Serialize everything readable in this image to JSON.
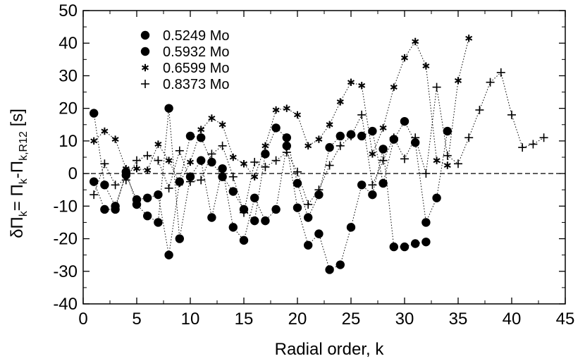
{
  "chart_data": {
    "type": "scatter",
    "title": "",
    "xlabel": "Radial order, k",
    "ylabel": {
      "main": "δΠ",
      "sub1": "k",
      "mid": "= Π",
      "sub2": "k",
      "mid2": "-Π",
      "sub3": "k,R12",
      "tail": " [s]"
    },
    "xlim": [
      0,
      45
    ],
    "ylim": [
      -40,
      50
    ],
    "xticks": [
      "0",
      "5",
      "10",
      "15",
      "20",
      "25",
      "30",
      "35",
      "40",
      "45"
    ],
    "yticks": [
      "-40",
      "-30",
      "-20",
      "-10",
      "0",
      "10",
      "20",
      "30",
      "40",
      "50"
    ],
    "zero_line": true,
    "legend_position": "top-left",
    "series": [
      {
        "name": "0.5249 Mo",
        "marker": "circle",
        "values": [
          [
            1,
            18.5
          ],
          [
            2,
            -3.5
          ],
          [
            3,
            -10
          ],
          [
            4,
            -0.5
          ],
          [
            5,
            -8
          ],
          [
            6,
            -7.5
          ],
          [
            7,
            -6.5
          ],
          [
            8,
            -25
          ],
          [
            9,
            -2.5
          ],
          [
            10,
            11.5
          ],
          [
            11,
            11
          ],
          [
            12,
            3.5
          ],
          [
            13,
            -1
          ],
          [
            14,
            -5.5
          ],
          [
            15,
            -11
          ],
          [
            16,
            -14.5
          ],
          [
            17,
            6
          ],
          [
            18,
            14
          ],
          [
            19,
            11
          ],
          [
            20,
            -3
          ],
          [
            21,
            -13.5
          ],
          [
            22,
            -6.5
          ],
          [
            23,
            8
          ],
          [
            24,
            11.5
          ],
          [
            25,
            12
          ],
          [
            26,
            11.5
          ],
          [
            27,
            13
          ],
          [
            28,
            -3
          ],
          [
            29,
            10.5
          ],
          [
            30,
            16
          ],
          [
            31,
            9.5
          ],
          [
            32,
            -15
          ],
          [
            33,
            -7.5
          ],
          [
            34,
            13
          ]
        ]
      },
      {
        "name": "0.5932 Mo",
        "marker": "circle",
        "values": [
          [
            1,
            -2.5
          ],
          [
            2,
            -11
          ],
          [
            3,
            -11
          ],
          [
            4,
            0.5
          ],
          [
            5,
            -9.5
          ],
          [
            6,
            -13
          ],
          [
            7,
            -15
          ],
          [
            8,
            20
          ],
          [
            9,
            -20
          ],
          [
            10,
            -1
          ],
          [
            11,
            4
          ],
          [
            12,
            -13.5
          ],
          [
            13,
            1.5
          ],
          [
            14,
            -16.5
          ],
          [
            15,
            -20.5
          ],
          [
            16,
            -7.5
          ],
          [
            17,
            -14.5
          ],
          [
            18,
            -11
          ],
          [
            19,
            8.5
          ],
          [
            20,
            -10.5
          ],
          [
            21,
            -22
          ],
          [
            22,
            -18.5
          ],
          [
            23,
            -29.5
          ],
          [
            24,
            -28
          ],
          [
            25,
            -16.5
          ],
          [
            26,
            -3.5
          ],
          [
            27,
            -6.5
          ],
          [
            28,
            7.5
          ],
          [
            29,
            -22.5
          ],
          [
            30,
            -22.5
          ],
          [
            31,
            -21.5
          ],
          [
            32,
            -21
          ]
        ]
      },
      {
        "name": "0.6599 Mo",
        "marker": "asterisk",
        "values": [
          [
            1,
            10
          ],
          [
            2,
            13
          ],
          [
            3,
            10.5
          ],
          [
            4,
            1.5
          ],
          [
            5,
            1.5
          ],
          [
            6,
            1
          ],
          [
            7,
            9
          ],
          [
            8,
            4
          ],
          [
            9,
            -3
          ],
          [
            10,
            3.5
          ],
          [
            11,
            13.5
          ],
          [
            12,
            17
          ],
          [
            13,
            15
          ],
          [
            14,
            5
          ],
          [
            15,
            3
          ],
          [
            16,
            -1
          ],
          [
            17,
            8.5
          ],
          [
            18,
            19.5
          ],
          [
            19,
            20
          ],
          [
            20,
            18
          ],
          [
            21,
            8.5
          ],
          [
            22,
            10.5
          ],
          [
            23,
            15
          ],
          [
            24,
            22
          ],
          [
            25,
            28
          ],
          [
            26,
            27
          ],
          [
            27,
            6
          ],
          [
            28,
            14
          ],
          [
            29,
            26.5
          ],
          [
            30,
            35.5
          ],
          [
            31,
            40.5
          ],
          [
            32,
            33
          ],
          [
            33,
            4
          ],
          [
            34,
            2.5
          ],
          [
            35,
            28.5
          ],
          [
            36,
            41.5
          ]
        ]
      },
      {
        "name": "0.8373 Mo",
        "marker": "plus",
        "values": [
          [
            1,
            -6.5
          ],
          [
            2,
            3
          ],
          [
            3,
            -3.5
          ],
          [
            4,
            -2
          ],
          [
            5,
            4
          ],
          [
            6,
            5.5
          ],
          [
            7,
            4
          ],
          [
            8,
            -4.5
          ],
          [
            9,
            7
          ],
          [
            10,
            -2.5
          ],
          [
            11,
            -2
          ],
          [
            12,
            6
          ],
          [
            13,
            8.5
          ],
          [
            14,
            -1
          ],
          [
            15,
            -12
          ],
          [
            16,
            3.5
          ],
          [
            17,
            2
          ],
          [
            18,
            4
          ],
          [
            19,
            6.5
          ],
          [
            20,
            0.5
          ],
          [
            21,
            -9.5
          ],
          [
            22,
            -5
          ],
          [
            23,
            2.5
          ],
          [
            24,
            8.5
          ],
          [
            25,
            11.5
          ],
          [
            26,
            18
          ],
          [
            27,
            -3.5
          ],
          [
            28,
            4
          ],
          [
            29,
            11
          ],
          [
            30,
            4.5
          ],
          [
            31,
            11
          ],
          [
            32,
            0
          ],
          [
            33,
            26.5
          ],
          [
            34,
            5.5
          ],
          [
            35,
            3
          ],
          [
            36,
            11
          ],
          [
            37,
            19.5
          ],
          [
            38,
            28
          ],
          [
            39,
            31
          ],
          [
            40,
            18
          ],
          [
            41,
            8
          ],
          [
            42,
            9
          ],
          [
            43,
            11
          ]
        ]
      }
    ]
  }
}
